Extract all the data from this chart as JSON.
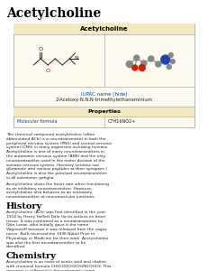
{
  "title": "Acetylcholine",
  "infobox_title": "Acetylcholine",
  "iupac_label": "IUPAC name [hide]",
  "iupac_name": "2-Acetoxy-N,N,N-trimethylethanaminium",
  "properties_label": "Properties",
  "mol_formula_label": "Molecular formula",
  "mol_formula_value": "C7H16NO2+",
  "section1_title": "History",
  "section2_title": "Chemistry",
  "body_text1": "The chemical compound acetylcholine (often abbreviated ACh) is a neurotransmitter in both the peripheral nervous system (PNS) and central nervous system (CNS) in many organisms including humans. Acetylcholine is one of many neurotransmitters in the autonomic nervous system (ANS) and the only neurotransmitter used in the motor division of the somatic nervous system. (Sensory neurons use glutamate and various peptides at their synapses.) Acetylcholine is also the principal neurotransmitter in all autonomic ganglia.",
  "body_text2": "Acetylcholine slows the heart rate when functioning as an inhibitory neurotransmitter. However, acetylcholine also behaves as an excitatory neurotransmitter at neuromuscular junctions.",
  "history_text": "Acetylcholine (ACh) was first identified in the year 1914 by Henry Hallett Dale for its actions on heart tissue. It was confirmed as a neurotransmitter by Otto Loewi, who initially gave it the name Vagusstoff because it was released from the vagus nerve. Both received the 1936 Nobel Prize in Physiology or Medicine for their work. Acetylcholine was also the first neurotransmitter to be identified.",
  "chemistry_text": "Acetylcholine is an ester of acetic acid and choline with chemical formula CH3COOCH2CH2N(CH3)3. This structure is reflected in the systematic name, 2-acetoxy-N,N,N-trimethylethanaminium. Its receptors have very high binding constants.",
  "bg_color": "#ffffff",
  "infobox_header_color": "#f5e9c0",
  "infobox_bg_color": "#fdfaf0",
  "infobox_border_color": "#aaaaaa",
  "title_color": "#000000",
  "link_color": "#0645ad",
  "section_title_color": "#000000",
  "body_text_color": "#202020"
}
